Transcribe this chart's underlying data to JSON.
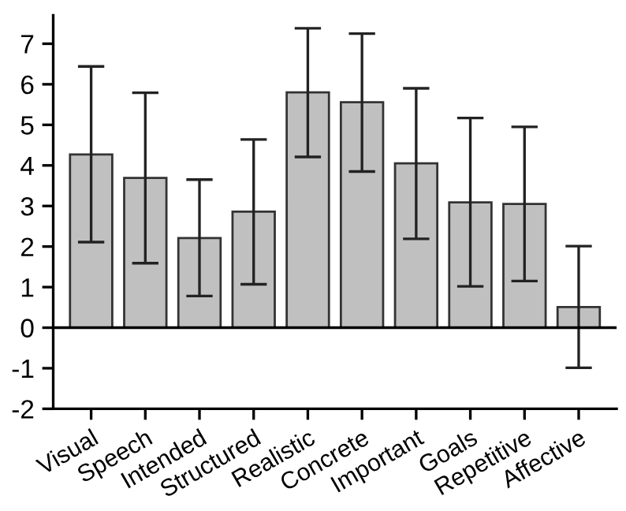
{
  "chart_data": {
    "type": "bar",
    "categories": [
      "Visual",
      "Speech",
      "Intended",
      "Structured",
      "Realistic",
      "Concrete",
      "Important",
      "Goals",
      "Repetitive",
      "Affective"
    ],
    "values": [
      4.27,
      3.69,
      2.21,
      2.86,
      5.8,
      5.56,
      4.05,
      3.09,
      3.05,
      0.51
    ],
    "errors": [
      [
        2.11,
        6.44
      ],
      [
        1.59,
        5.79
      ],
      [
        0.78,
        3.65
      ],
      [
        1.07,
        4.64
      ],
      [
        4.21,
        7.38
      ],
      [
        3.85,
        7.25
      ],
      [
        2.19,
        5.9
      ],
      [
        1.02,
        5.17
      ],
      [
        1.15,
        4.95
      ],
      [
        -0.99,
        2.01
      ]
    ],
    "color": "#c0c0c0",
    "ylim": [
      -2,
      7.7
    ],
    "yticks": [
      -2,
      -1,
      0,
      1,
      2,
      3,
      4,
      5,
      6,
      7
    ],
    "ref_lines": [
      {
        "axis": "y",
        "value": 0,
        "color": "#000000"
      }
    ],
    "grid": false
  }
}
